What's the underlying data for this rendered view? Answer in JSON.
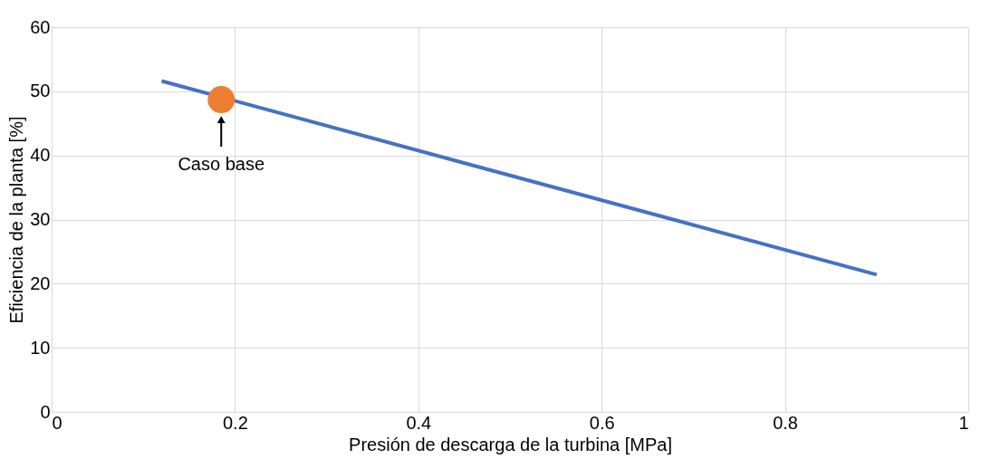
{
  "chart_data": {
    "type": "line",
    "xlabel": "Presión de descarga de la turbina [MPa]",
    "ylabel": "Eficiencia de la planta [%]",
    "series": [
      {
        "color": "#4472c4",
        "x": [
          0.12,
          0.9
        ],
        "values": [
          51.6,
          21.4
        ]
      },
      {
        "type": "scatter",
        "color": "#ed7d31",
        "x": [
          0.185
        ],
        "values": [
          48.7
        ]
      }
    ],
    "annotations": [
      {
        "text": "Caso base",
        "x": 0.185,
        "y": 48.7
      }
    ],
    "xlim": [
      0,
      1
    ],
    "xticks": [
      0,
      0.2,
      0.4,
      0.6,
      0.8,
      1
    ],
    "ylim": [
      0,
      60
    ],
    "yticks": [
      0,
      10,
      20,
      30,
      40,
      50,
      60
    ],
    "grid": true
  }
}
